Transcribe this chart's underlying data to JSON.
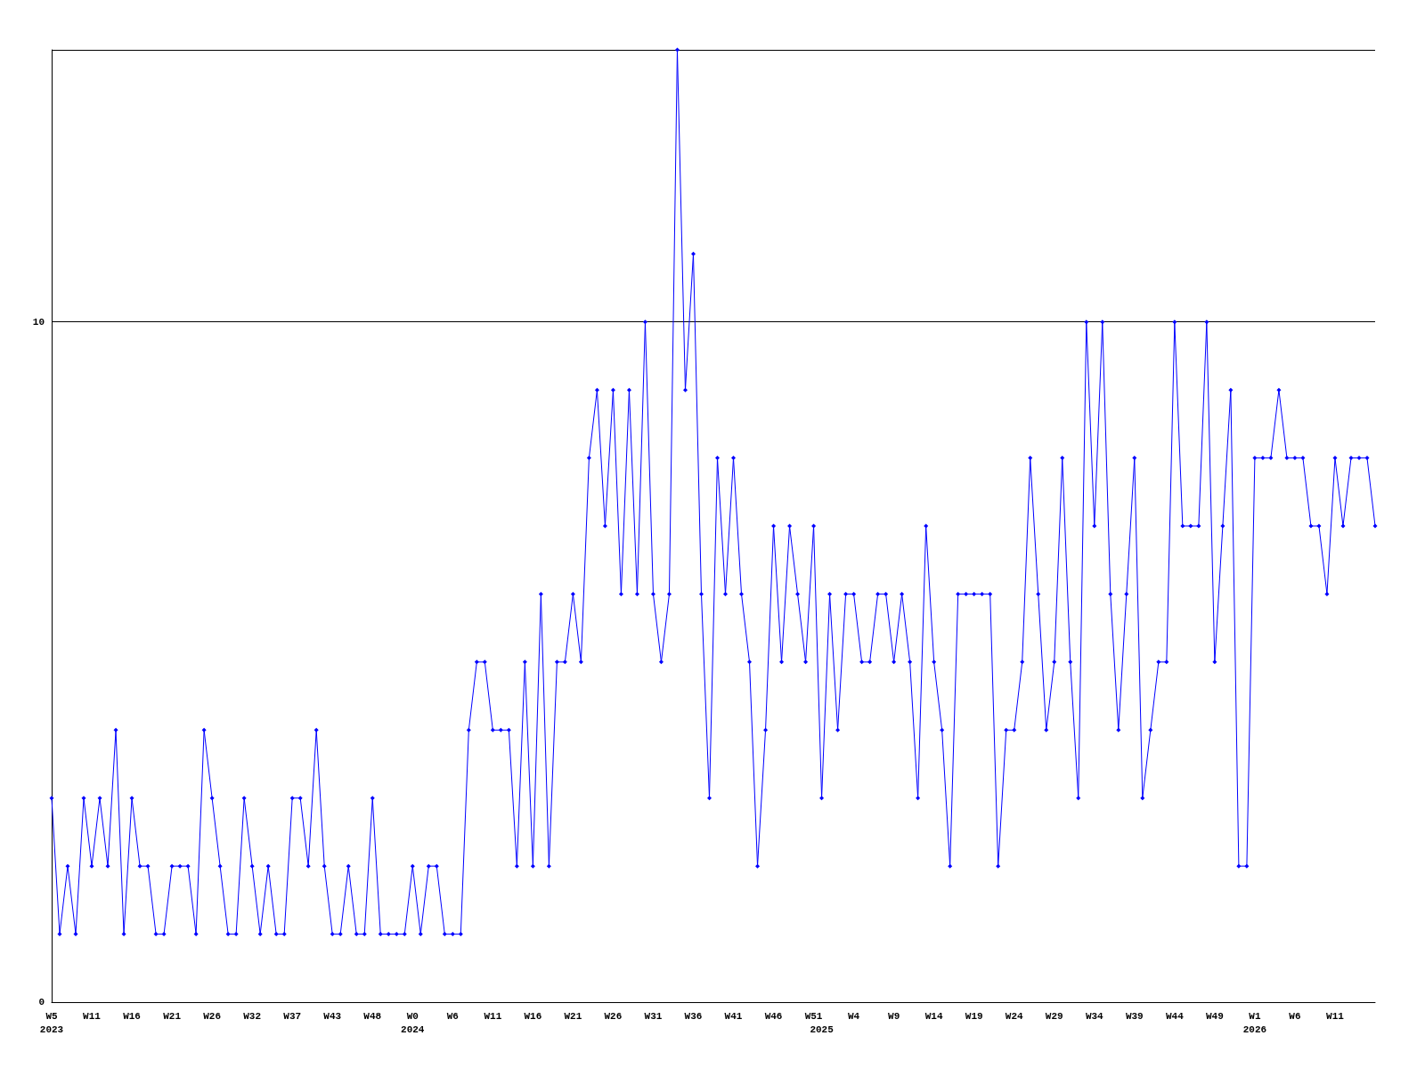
{
  "chart_data": {
    "type": "line",
    "categories": [
      "W5\n2023",
      null,
      null,
      null,
      null,
      "W11",
      null,
      null,
      null,
      null,
      "W16",
      null,
      null,
      null,
      null,
      "W21",
      null,
      null,
      null,
      null,
      "W26",
      null,
      null,
      null,
      null,
      "W32",
      null,
      null,
      null,
      null,
      "W37",
      null,
      null,
      null,
      null,
      "W43",
      null,
      null,
      null,
      null,
      "W48",
      null,
      null,
      null,
      null,
      "W0\n2024",
      null,
      null,
      null,
      null,
      "W6",
      null,
      null,
      null,
      null,
      "W11",
      null,
      null,
      null,
      null,
      "W16",
      null,
      null,
      null,
      null,
      "W21",
      null,
      null,
      null,
      null,
      "W26",
      null,
      null,
      null,
      null,
      "W31",
      null,
      null,
      null,
      null,
      "W36",
      null,
      null,
      null,
      null,
      "W41",
      null,
      null,
      null,
      null,
      "W46",
      null,
      null,
      null,
      null,
      "W51",
      "\n2025",
      null,
      null,
      null,
      "W4",
      null,
      null,
      null,
      null,
      "W9",
      null,
      null,
      null,
      null,
      "W14",
      null,
      null,
      null,
      null,
      "W19",
      null,
      null,
      null,
      null,
      "W24",
      null,
      null,
      null,
      null,
      "W29",
      null,
      null,
      null,
      null,
      "W34",
      null,
      null,
      null,
      null,
      "W39",
      null,
      null,
      null,
      null,
      "W44",
      null,
      null,
      null,
      null,
      "W49",
      null,
      null,
      null,
      null,
      "W1\n2026",
      null,
      null,
      null,
      null,
      "W6",
      null,
      null,
      null,
      null,
      "W11",
      null,
      null,
      null,
      null,
      null
    ],
    "series": [
      {
        "color": "#0000ff",
        "values": [
          3,
          1,
          2,
          1,
          3,
          2,
          3,
          2,
          4,
          1,
          3,
          2,
          2,
          1,
          1,
          2,
          2,
          2,
          1,
          4,
          3,
          2,
          1,
          1,
          3,
          2,
          1,
          2,
          1,
          1,
          3,
          3,
          2,
          4,
          2,
          1,
          1,
          2,
          1,
          1,
          3,
          1,
          1,
          1,
          1,
          2,
          1,
          2,
          2,
          1,
          1,
          1,
          4,
          5,
          5,
          4,
          4,
          4,
          2,
          5,
          2,
          6,
          2,
          5,
          5,
          6,
          5,
          8,
          9,
          7,
          9,
          6,
          9,
          6,
          10,
          6,
          5,
          6,
          14,
          9,
          11,
          6,
          3,
          8,
          6,
          8,
          6,
          5,
          2,
          4,
          7,
          5,
          7,
          6,
          5,
          7,
          3,
          6,
          4,
          6,
          6,
          5,
          5,
          6,
          6,
          5,
          6,
          5,
          3,
          7,
          5,
          4,
          2,
          6,
          6,
          6,
          6,
          6,
          2,
          4,
          4,
          5,
          8,
          6,
          4,
          5,
          8,
          5,
          3,
          10,
          7,
          10,
          6,
          4,
          6,
          8,
          3,
          4,
          5,
          5,
          10,
          7,
          7,
          7,
          10,
          5,
          7,
          9,
          2,
          2,
          8,
          8,
          8,
          9,
          8,
          8,
          8,
          7,
          7,
          6,
          8,
          7,
          8,
          8,
          8,
          7
        ]
      }
    ],
    "ylim": [
      0,
      14
    ],
    "yticks": [
      0,
      10
    ],
    "grid": "y",
    "marker": "diamond",
    "line_style": "solid"
  }
}
